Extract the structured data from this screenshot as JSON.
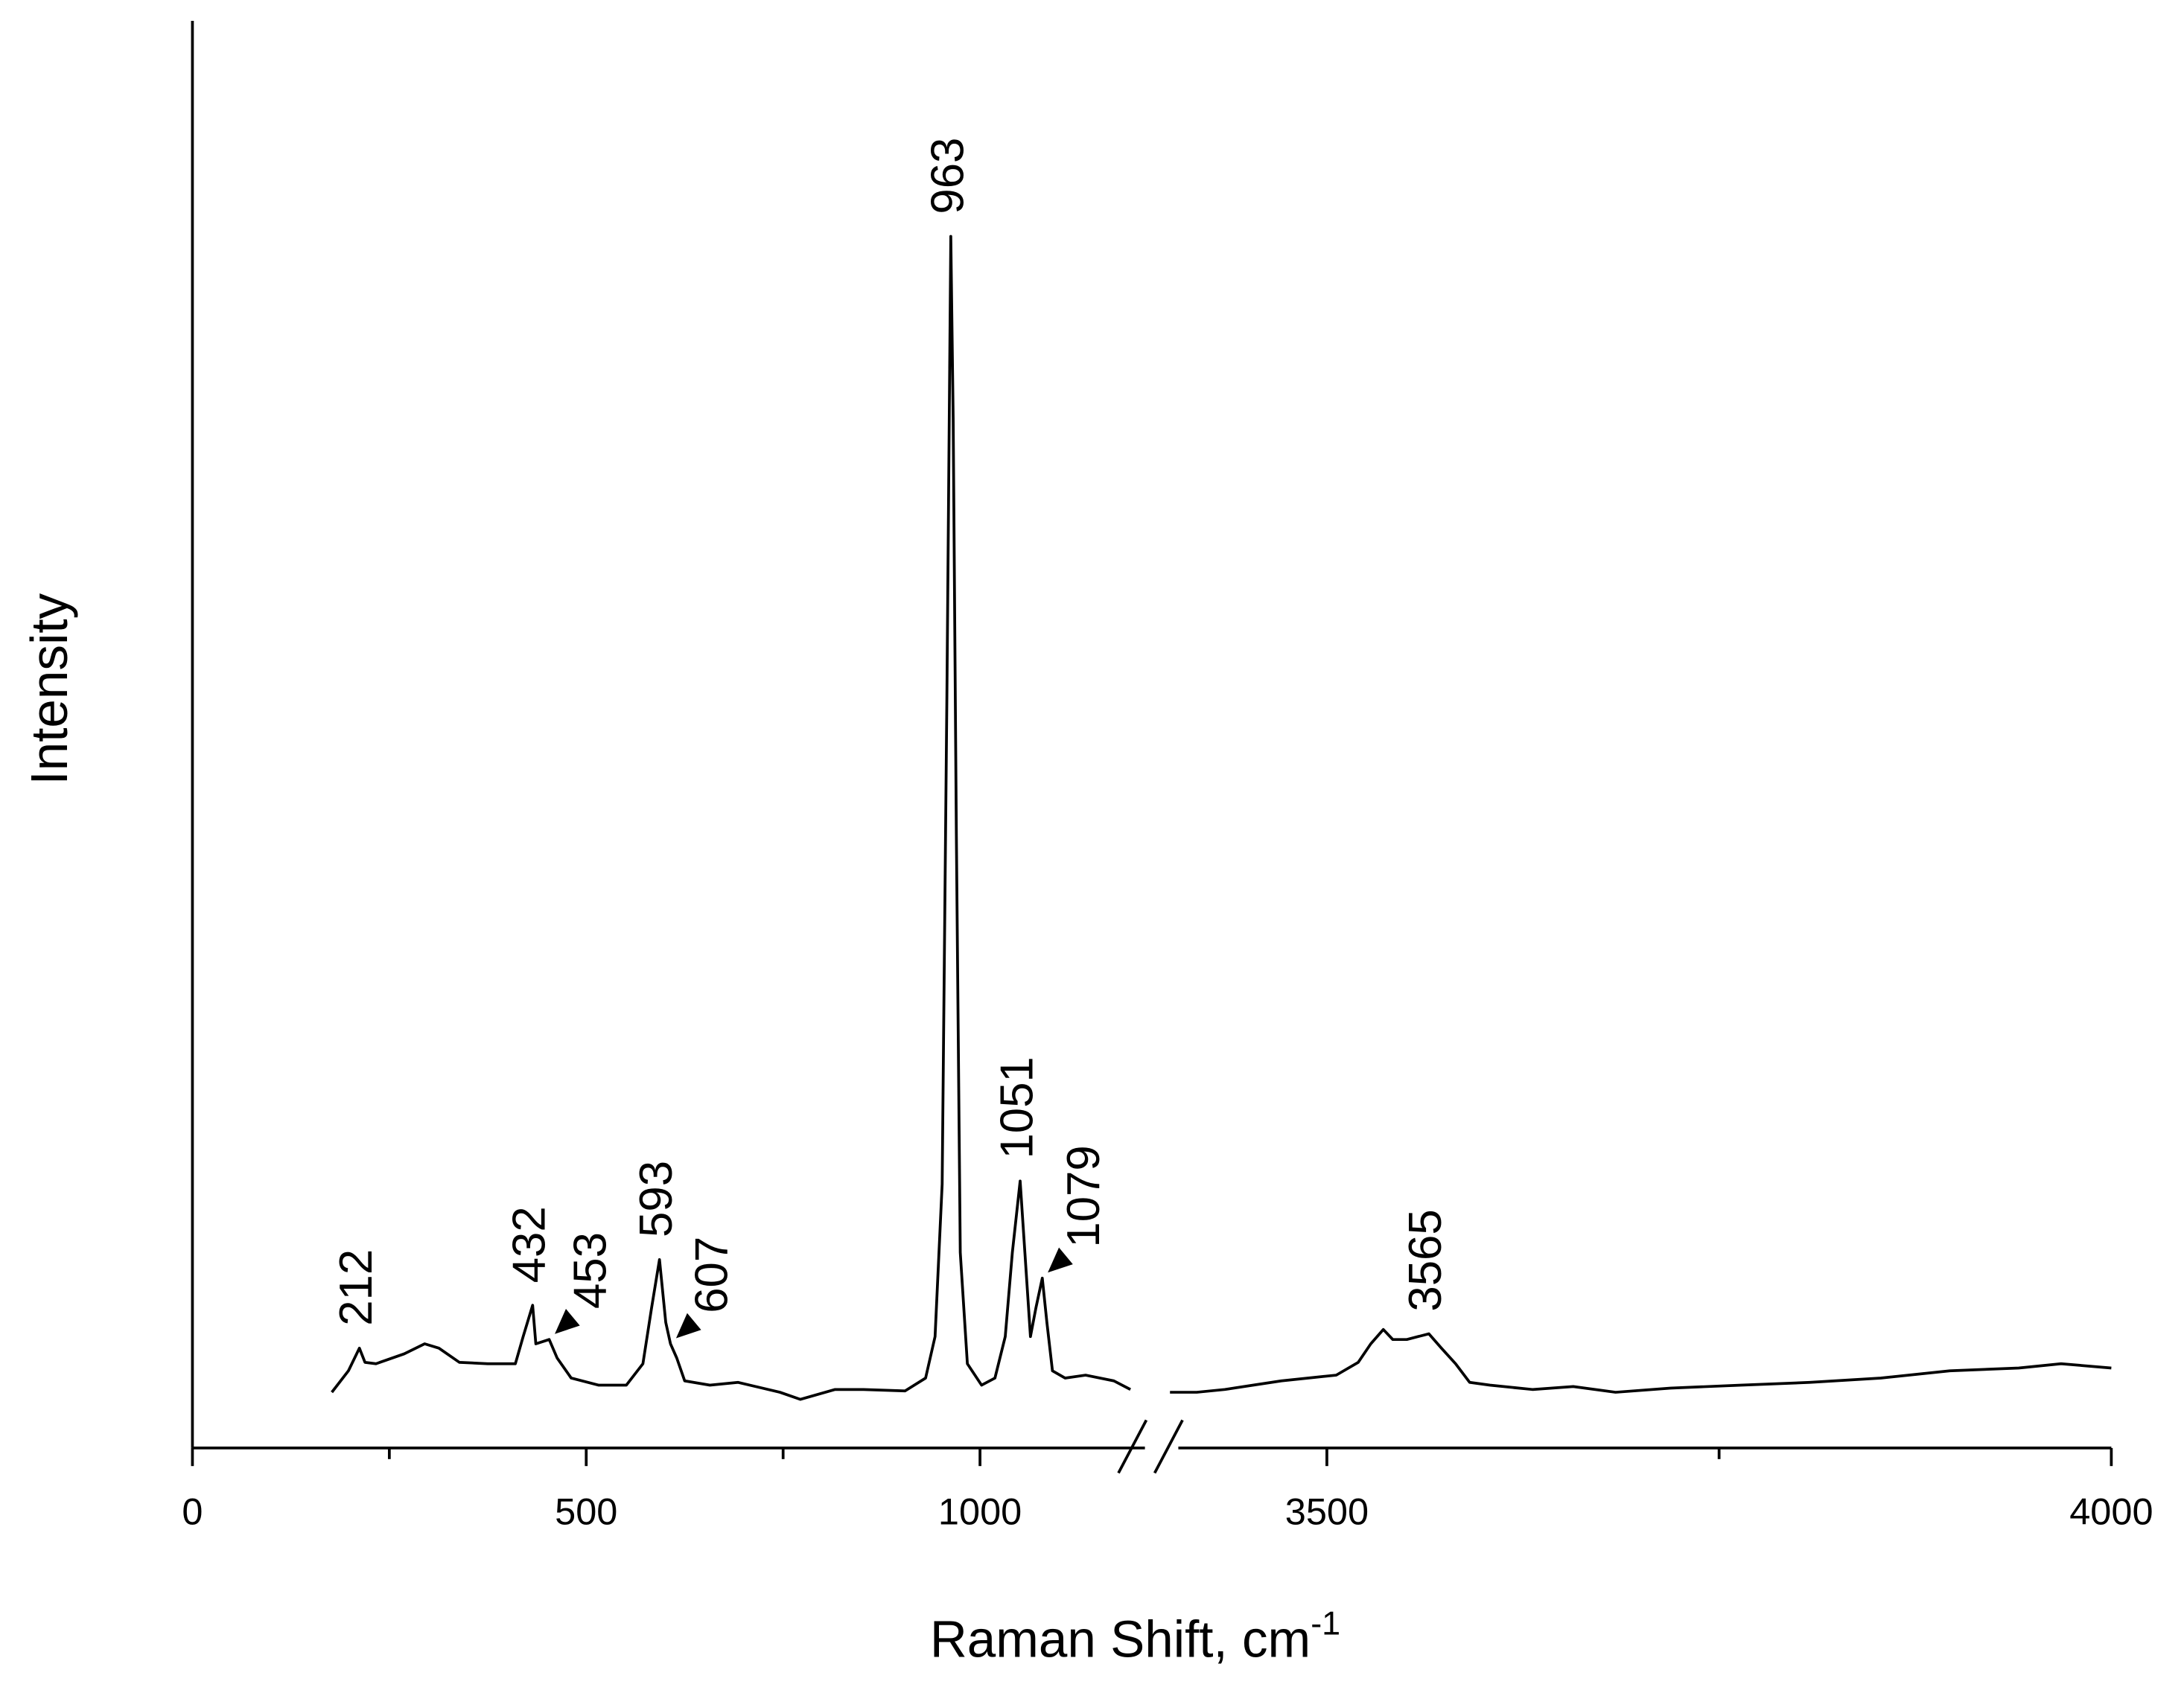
{
  "chart_data": {
    "type": "line",
    "xlabel": "Raman Shift, cm",
    "xlabel_sup": "-1",
    "ylabel": "Intensity",
    "ylim": [
      0,
      100
    ],
    "x_segments": [
      {
        "xlim": [
          0,
          1220
        ],
        "xticks": [
          0,
          500,
          1000
        ],
        "minor_xticks": [
          250,
          750
        ]
      },
      {
        "xlim": [
          3400,
          4000
        ],
        "xticks": [
          3500,
          4000
        ],
        "minor_xticks": [
          3750
        ]
      }
    ],
    "series": [
      {
        "color": "#000000",
        "x": [
          177,
          198,
          212,
          219,
          233,
          269,
          295,
          313,
          339,
          375,
          410,
          420,
          432,
          436,
          453,
          463,
          481,
          516,
          551,
          572,
          583,
          593,
          601,
          607,
          615,
          625,
          657,
          693,
          746,
          772,
          816,
          852,
          905,
          931,
          943,
          952,
          958,
          963,
          966,
          970,
          975,
          984,
          1002,
          1019,
          1032,
          1041,
          1051,
          1057,
          1064,
          1071,
          1079,
          1085,
          1092,
          1108,
          1134,
          1170,
          1191
        ],
        "values": [
          3.9,
          5.4,
          7.0,
          6.0,
          5.9,
          6.6,
          7.3,
          7.0,
          6.0,
          5.9,
          5.9,
          7.8,
          10.0,
          7.3,
          7.6,
          6.3,
          4.9,
          4.4,
          4.4,
          5.9,
          9.8,
          13.2,
          8.8,
          7.3,
          6.3,
          4.7,
          4.4,
          4.6,
          3.9,
          3.4,
          4.1,
          4.1,
          4.0,
          4.9,
          7.8,
          18.5,
          52.7,
          84.9,
          72.2,
          42.9,
          13.7,
          5.9,
          4.4,
          4.9,
          7.8,
          13.7,
          18.7,
          13.7,
          7.8,
          9.8,
          11.9,
          8.8,
          5.4,
          4.9,
          5.1,
          4.7,
          4.1
        ]
      },
      {
        "color": "#000000",
        "x": [
          3400,
          3417,
          3435,
          3453,
          3471,
          3488,
          3506,
          3520,
          3528,
          3536,
          3542,
          3551,
          3565,
          3573,
          3582,
          3591,
          3604,
          3631,
          3657,
          3684,
          3719,
          3764,
          3808,
          3853,
          3897,
          3941,
          3968,
          4000
        ],
        "values": [
          3.9,
          3.9,
          4.1,
          4.4,
          4.7,
          4.9,
          5.1,
          6.0,
          7.3,
          8.3,
          7.6,
          7.6,
          8.0,
          7.0,
          5.9,
          4.6,
          4.4,
          4.1,
          4.3,
          3.9,
          4.2,
          4.4,
          4.6,
          4.9,
          5.4,
          5.6,
          5.9,
          5.6
        ]
      }
    ],
    "peak_labels": [
      {
        "x": 212,
        "label": "212",
        "arrow": false
      },
      {
        "x": 432,
        "label": "432",
        "arrow": false
      },
      {
        "x": 453,
        "label": "453",
        "arrow": true
      },
      {
        "x": 593,
        "label": "593",
        "arrow": false
      },
      {
        "x": 607,
        "label": "607",
        "arrow": true
      },
      {
        "x": 963,
        "label": "963",
        "arrow": false
      },
      {
        "x": 1051,
        "label": "1051",
        "arrow": false
      },
      {
        "x": 1079,
        "label": "1079",
        "arrow": true
      },
      {
        "x": 3565,
        "label": "3565",
        "arrow": false
      }
    ]
  }
}
